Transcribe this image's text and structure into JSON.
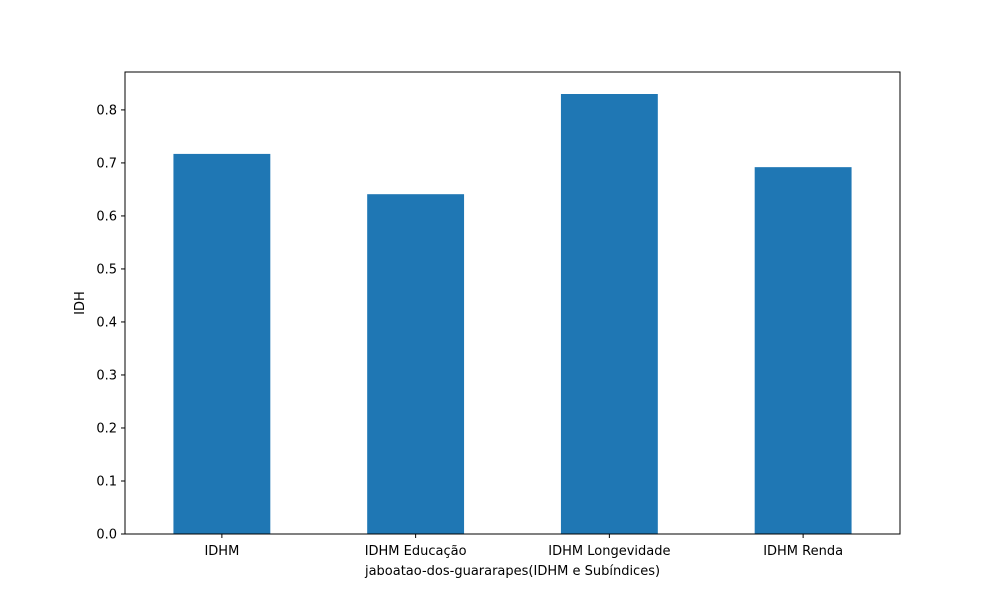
{
  "chart_data": {
    "type": "bar",
    "categories": [
      "IDHM",
      "IDHM Educação",
      "IDHM Longevidade",
      "IDHM Renda"
    ],
    "values": [
      0.717,
      0.641,
      0.83,
      0.692
    ],
    "title": "",
    "xlabel": "jaboatao-dos-guararapes(IDHM e Subíndices)",
    "ylabel": "IDH",
    "ylim": [
      0,
      0.8715
    ],
    "yticks": [
      0.0,
      0.1,
      0.2,
      0.3,
      0.4,
      0.5,
      0.6,
      0.7,
      0.8
    ],
    "ytick_labels": [
      "0.0",
      "0.1",
      "0.2",
      "0.3",
      "0.4",
      "0.5",
      "0.6",
      "0.7",
      "0.8"
    ],
    "bar_color": "#1f77b4",
    "grid": false,
    "legend": "none"
  }
}
